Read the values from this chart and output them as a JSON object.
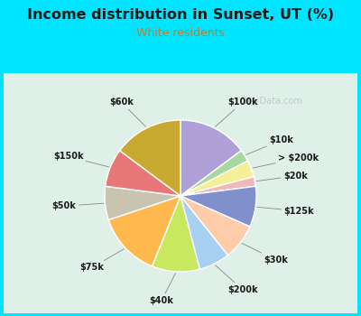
{
  "title": "Income distribution in Sunset, UT (%)",
  "subtitle": "White residents",
  "title_color": "#1a1a1a",
  "subtitle_color": "#cc7722",
  "background_outer": "#00e5ff",
  "background_inner": "#dff0e8",
  "labels": [
    "$100k",
    "$10k",
    "> $200k",
    "$20k",
    "$125k",
    "$30k",
    "$200k",
    "$40k",
    "$75k",
    "$50k",
    "$150k",
    "$60k"
  ],
  "values": [
    14.5,
    2.5,
    3.5,
    2.0,
    8.5,
    7.5,
    6.5,
    10.0,
    13.5,
    7.0,
    8.0,
    14.5
  ],
  "colors": [
    "#b0a0d8",
    "#a8d8a0",
    "#f5f098",
    "#f0b8b8",
    "#8090cc",
    "#ffccaa",
    "#a8d0f0",
    "#c8e860",
    "#ffb84d",
    "#c8c4b0",
    "#e87878",
    "#c8aa30"
  ],
  "watermark": "City-Data.com",
  "startangle": 90
}
